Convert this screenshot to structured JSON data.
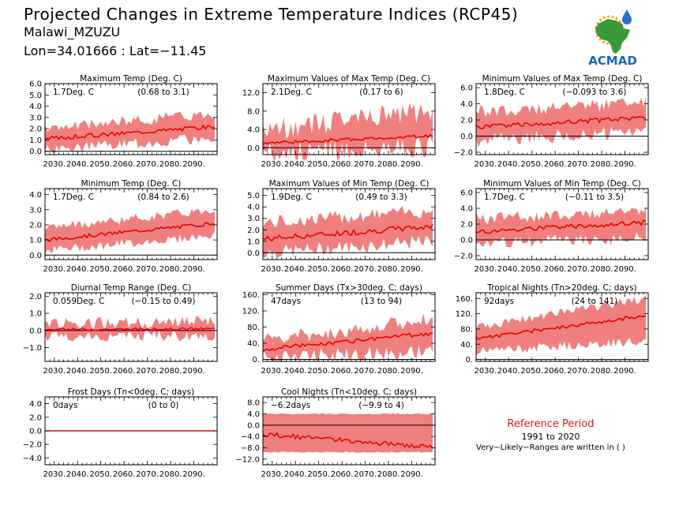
{
  "header": {
    "title": "Projected Changes in Extreme Temperature Indices (RCP45)",
    "location": "Malawi_MZUZU",
    "coords": "Lon=34.01666 : Lat=−11.45"
  },
  "logo": {
    "text": "ACMAD",
    "colors": {
      "africa": "#3a9a3a",
      "text": "#1e62c2",
      "sun": "#f2a81c",
      "drop": "#2a6fd0"
    }
  },
  "reference": {
    "title": "Reference Period",
    "years": "1991 to 2020",
    "note": "Very−Likely−Ranges are written in ( )"
  },
  "colors": {
    "band": "#f08080",
    "line": "#ee0000",
    "zero": "#000000"
  },
  "chart_data": [
    {
      "type": "area",
      "title": "Maximum Temp (Deg. C)",
      "value_label": "1.7Deg. C",
      "range_label": "(0.68 to 3.1)",
      "x_ticks": [
        "2030.",
        "2040.",
        "2050.",
        "2060.",
        "2070.",
        "2080.",
        "2090."
      ],
      "y_ticks": [
        "6.0",
        "5.0",
        "4.0",
        "3.0",
        "2.0",
        "1.0",
        "0.0"
      ],
      "y_values": [
        6,
        5,
        4,
        3,
        2,
        1,
        0
      ],
      "ylim": [
        -0.3,
        6
      ],
      "median": {
        "start": 1.1,
        "end": 2.2
      },
      "lower": {
        "start": 0.1,
        "end": 1.2
      },
      "upper": {
        "start": 2.0,
        "end": 3.4
      },
      "noise": 0.18,
      "band_noise": 0.5
    },
    {
      "type": "area",
      "title": "Maximum Values of Max Temp (Deg. C)",
      "value_label": "2.1Deg. C",
      "range_label": "(0.17 to 6)",
      "x_ticks": [
        "2030.",
        "2040.",
        "2050.",
        "2060.",
        "2070.",
        "2080.",
        "2090."
      ],
      "y_ticks": [
        "12.0",
        "8.0",
        "4.0",
        "0.0"
      ],
      "y_values": [
        12,
        8,
        4,
        0
      ],
      "ylim": [
        -1.5,
        14
      ],
      "median": {
        "start": 1.0,
        "end": 2.6
      },
      "lower": {
        "start": -0.8,
        "end": 0.2
      },
      "upper": {
        "start": 4.0,
        "end": 8.0
      },
      "noise": 0.35,
      "band_noise": 2.5
    },
    {
      "type": "area",
      "title": "Minimum Values of Max Temp (Deg. C)",
      "value_label": "1.8Deg. C",
      "range_label": "(−0.093 to 3.6)",
      "x_ticks": [
        "2030.",
        "2040.",
        "2050.",
        "2060.",
        "2070.",
        "2080.",
        "2090."
      ],
      "y_ticks": [
        "6.0",
        "4.0",
        "2.0",
        "0.0",
        "−2.0"
      ],
      "y_values": [
        6,
        4,
        2,
        0,
        -2
      ],
      "ylim": [
        -2.3,
        6.5
      ],
      "median": {
        "start": 1.1,
        "end": 2.3
      },
      "lower": {
        "start": -0.6,
        "end": 0.5
      },
      "upper": {
        "start": 3.0,
        "end": 4.2
      },
      "noise": 0.3,
      "band_noise": 0.9
    },
    {
      "type": "area",
      "title": "Minimum Temp (Deg. C)",
      "value_label": "1.7Deg. C",
      "range_label": "(0.84 to 2.6)",
      "x_ticks": [
        "2030.",
        "2040.",
        "2050.",
        "2060.",
        "2070.",
        "2080.",
        "2090."
      ],
      "y_ticks": [
        "4.0",
        "3.0",
        "2.0",
        "1.0",
        "0.0"
      ],
      "y_values": [
        4,
        3,
        2,
        1,
        0
      ],
      "ylim": [
        -0.3,
        4.4
      ],
      "median": {
        "start": 1.0,
        "end": 2.1
      },
      "lower": {
        "start": 0.3,
        "end": 1.3
      },
      "upper": {
        "start": 1.8,
        "end": 3.0
      },
      "noise": 0.12,
      "band_noise": 0.3
    },
    {
      "type": "area",
      "title": "Maximum Values of Min Temp (Deg. C)",
      "value_label": "1.9Deg. C",
      "range_label": "(0.49 to 3.3)",
      "x_ticks": [
        "2030.",
        "2040.",
        "2050.",
        "2060.",
        "2070.",
        "2080.",
        "2090."
      ],
      "y_ticks": [
        "5.0",
        "4.0",
        "3.0",
        "2.0",
        "1.0",
        "0.0"
      ],
      "y_values": [
        5,
        4,
        3,
        2,
        1,
        0
      ],
      "ylim": [
        -0.6,
        5.6
      ],
      "median": {
        "start": 1.2,
        "end": 2.3
      },
      "lower": {
        "start": 0.0,
        "end": 1.0
      },
      "upper": {
        "start": 2.6,
        "end": 3.7
      },
      "noise": 0.25,
      "band_noise": 0.6
    },
    {
      "type": "area",
      "title": "Minimum Values of Min Temp (Deg. C)",
      "value_label": "1.7Deg. C",
      "range_label": "(−0.11 to 3.5)",
      "x_ticks": [
        "2030.",
        "2040.",
        "2050.",
        "2060.",
        "2070.",
        "2080.",
        "2090."
      ],
      "y_ticks": [
        "6.0",
        "4.0",
        "2.0",
        "0.0",
        "−2.0"
      ],
      "y_values": [
        6,
        4,
        2,
        0,
        -2
      ],
      "ylim": [
        -2.5,
        6.5
      ],
      "median": {
        "start": 1.0,
        "end": 2.2
      },
      "lower": {
        "start": -0.5,
        "end": 0.3
      },
      "upper": {
        "start": 2.7,
        "end": 3.6
      },
      "noise": 0.3,
      "band_noise": 0.8
    },
    {
      "type": "area",
      "title": "Diurnal Temp Range (Deg. C)",
      "value_label": "0.059Deg. C",
      "range_label": "(−0.15 to 0.49)",
      "x_ticks": [
        "2030.",
        "2040.",
        "2050.",
        "2060.",
        "2070.",
        "2080.",
        "2090."
      ],
      "y_ticks": [
        "2.0",
        "1.0",
        "0.0",
        "−1.0"
      ],
      "y_values": [
        2,
        1,
        0,
        -1
      ],
      "ylim": [
        -1.8,
        2.2
      ],
      "median": {
        "start": 0.05,
        "end": 0.1
      },
      "lower": {
        "start": -0.35,
        "end": -0.3
      },
      "upper": {
        "start": 0.4,
        "end": 0.5
      },
      "noise": 0.07,
      "band_noise": 0.35
    },
    {
      "type": "area",
      "title": "Summer Days (Tx>30deg. C; days)",
      "value_label": "47days",
      "range_label": "(13 to 94)",
      "x_ticks": [
        "2030.",
        "2040.",
        "2050.",
        "2060.",
        "2070.",
        "2080.",
        "2090."
      ],
      "y_ticks": [
        "160.",
        "120.",
        "80.",
        "40.",
        "0."
      ],
      "y_values": [
        160,
        120,
        80,
        40,
        0
      ],
      "ylim": [
        -5,
        165
      ],
      "median": {
        "start": 25,
        "end": 65
      },
      "lower": {
        "start": 8,
        "end": 18
      },
      "upper": {
        "start": 45,
        "end": 100
      },
      "noise": 5,
      "band_noise": 18
    },
    {
      "type": "area",
      "title": "Tropical Nights (Tn>20deg. C; days)",
      "value_label": "92days",
      "range_label": "(24 to 141)",
      "x_ticks": [
        "2030.",
        "2040.",
        "2050.",
        "2060.",
        "2070.",
        "2080.",
        "2090."
      ],
      "y_ticks": [
        "160.",
        "120.",
        "80.",
        "40.",
        "0."
      ],
      "y_values": [
        160,
        120,
        80,
        40,
        0
      ],
      "ylim": [
        -5,
        175
      ],
      "median": {
        "start": 55,
        "end": 115
      },
      "lower": {
        "start": 22,
        "end": 48
      },
      "upper": {
        "start": 85,
        "end": 160
      },
      "noise": 5,
      "band_noise": 12
    },
    {
      "type": "area",
      "title": "Frost Days (Tn<0deg. C; days)",
      "value_label": "0days",
      "range_label": "(0 to 0)",
      "x_ticks": [
        "2030.",
        "2040.",
        "2050.",
        "2060.",
        "2070.",
        "2080.",
        "2090."
      ],
      "y_ticks": [
        "4.0",
        "2.0",
        "0.0",
        "−2.0",
        "−4.0"
      ],
      "y_values": [
        4,
        2,
        0,
        -2,
        -4
      ],
      "ylim": [
        -5,
        5
      ],
      "median": {
        "start": 0,
        "end": 0
      },
      "lower": {
        "start": 0,
        "end": 0
      },
      "upper": {
        "start": 0,
        "end": 0
      },
      "noise": 0,
      "band_noise": 0
    },
    {
      "type": "area",
      "title": "Cool Nights (Tn<10deg. C; days)",
      "value_label": "−6.2days",
      "range_label": "(−9.9 to 4)",
      "x_ticks": [
        "2030.",
        "2040.",
        "2050.",
        "2060.",
        "2070.",
        "2080.",
        "2090."
      ],
      "y_ticks": [
        "8.0",
        "4.0",
        "0.0",
        "−4.0",
        "−8.0",
        "−12.0"
      ],
      "y_values": [
        8,
        4,
        0,
        -4,
        -8,
        -12
      ],
      "ylim": [
        -14,
        10
      ],
      "median": {
        "start": -3.2,
        "end": -7.8
      },
      "lower": {
        "start": -9.5,
        "end": -9.6
      },
      "upper": {
        "start": 4.0,
        "end": 4.0
      },
      "noise": 0.8,
      "band_noise": 0.2
    }
  ]
}
